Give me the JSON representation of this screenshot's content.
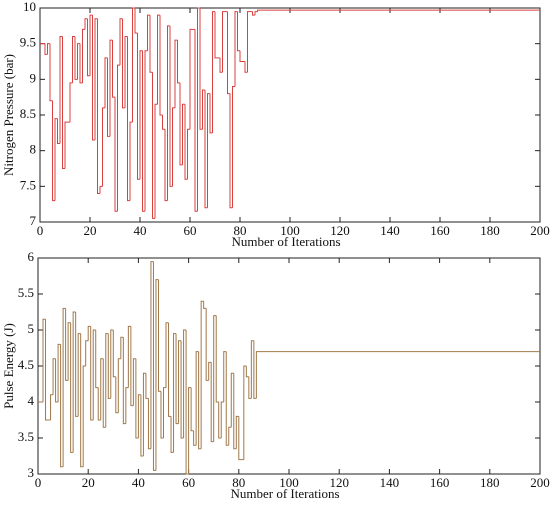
{
  "chart_data": [
    {
      "type": "step",
      "xlabel": "Number of Iterations",
      "ylabel": "Nitrogen Pressure (bar)",
      "x": [
        0,
        1,
        2,
        3,
        4,
        5,
        6,
        7,
        8,
        9,
        10,
        11,
        12,
        13,
        14,
        15,
        16,
        17,
        18,
        19,
        20,
        21,
        22,
        23,
        24,
        25,
        26,
        27,
        28,
        29,
        30,
        31,
        32,
        33,
        34,
        35,
        36,
        37,
        38,
        39,
        40,
        41,
        42,
        43,
        44,
        45,
        46,
        47,
        48,
        49,
        50,
        51,
        52,
        53,
        54,
        55,
        56,
        57,
        58,
        59,
        60,
        61,
        62,
        63,
        64,
        65,
        66,
        67,
        68,
        69,
        70,
        71,
        72,
        73,
        74,
        75,
        76,
        77,
        78,
        79,
        80,
        81,
        82,
        83,
        84,
        85,
        86,
        87,
        88,
        200
      ],
      "series": [
        {
          "color": "#d9413f",
          "values": [
            9.5,
            9.5,
            9.35,
            9.5,
            8.7,
            7.3,
            8.45,
            8.1,
            9.6,
            7.75,
            8.4,
            8.4,
            8.95,
            9.6,
            9.0,
            9.5,
            8.95,
            9.7,
            9.85,
            9.05,
            9.9,
            8.15,
            9.85,
            7.4,
            7.5,
            8.6,
            9.3,
            8.2,
            9.55,
            8.75,
            7.15,
            9.2,
            9.85,
            8.6,
            9.6,
            7.3,
            8.4,
            10.0,
            9.65,
            7.6,
            9.4,
            7.15,
            9.4,
            9.9,
            9.1,
            7.05,
            8.65,
            9.9,
            8.5,
            8.3,
            7.3,
            9.75,
            7.5,
            8.6,
            9.55,
            8.95,
            7.8,
            8.65,
            7.6,
            8.3,
            9.7,
            9.7,
            7.15,
            10.0,
            8.3,
            8.85,
            7.2,
            8.8,
            8.25,
            9.95,
            9.3,
            9.3,
            9.1,
            9.95,
            9.95,
            8.8,
            7.2,
            8.9,
            9.95,
            9.4,
            9.25,
            9.25,
            9.1,
            9.95,
            9.95,
            9.9,
            9.95,
            9.97,
            9.97,
            9.97
          ]
        }
      ],
      "xlim": [
        0,
        200
      ],
      "xticks": [
        0,
        20,
        40,
        60,
        80,
        100,
        120,
        140,
        160,
        180,
        200
      ],
      "ylim": [
        7,
        10
      ],
      "yticks": [
        7,
        7.5,
        8,
        8.5,
        9,
        9.5,
        10
      ]
    },
    {
      "type": "step",
      "xlabel": "Number of Iterations",
      "ylabel": "Pulse Energy (J)",
      "x": [
        0,
        1,
        2,
        3,
        4,
        5,
        6,
        7,
        8,
        9,
        10,
        11,
        12,
        13,
        14,
        15,
        16,
        17,
        18,
        19,
        20,
        21,
        22,
        23,
        24,
        25,
        26,
        27,
        28,
        29,
        30,
        31,
        32,
        33,
        34,
        35,
        36,
        37,
        38,
        39,
        40,
        41,
        42,
        43,
        44,
        45,
        46,
        47,
        48,
        49,
        50,
        51,
        52,
        53,
        54,
        55,
        56,
        57,
        58,
        59,
        60,
        61,
        62,
        63,
        64,
        65,
        66,
        67,
        68,
        69,
        70,
        71,
        72,
        73,
        74,
        75,
        76,
        77,
        78,
        79,
        80,
        81,
        82,
        83,
        84,
        85,
        86,
        87,
        88,
        200
      ],
      "series": [
        {
          "color": "#a0784a",
          "values": [
            4.0,
            4.0,
            5.15,
            3.75,
            3.75,
            4.1,
            4.6,
            4.0,
            4.8,
            3.1,
            5.3,
            4.3,
            5.1,
            3.3,
            5.25,
            3.8,
            4.95,
            3.1,
            4.5,
            4.85,
            5.05,
            3.75,
            5.0,
            4.2,
            3.75,
            4.6,
            3.65,
            4.95,
            4.05,
            5.0,
            4.35,
            3.85,
            4.6,
            4.9,
            3.7,
            4.2,
            5.05,
            3.95,
            4.6,
            3.5,
            4.1,
            3.25,
            4.4,
            4.05,
            3.35,
            5.95,
            3.05,
            5.7,
            4.15,
            3.5,
            4.2,
            5.1,
            3.8,
            3.3,
            4.95,
            3.7,
            4.85,
            3.5,
            5.0,
            3.0,
            4.2,
            3.6,
            3.4,
            4.7,
            3.35,
            5.4,
            5.3,
            4.3,
            4.55,
            3.45,
            5.2,
            4.0,
            3.5,
            4.0,
            4.7,
            3.4,
            3.65,
            4.4,
            3.35,
            3.8,
            3.2,
            3.2,
            4.5,
            4.35,
            4.05,
            4.85,
            4.05,
            4.7,
            4.7,
            4.7
          ]
        }
      ],
      "xlim": [
        0,
        200
      ],
      "xticks": [
        0,
        20,
        40,
        60,
        80,
        100,
        120,
        140,
        160,
        180,
        200
      ],
      "ylim": [
        3,
        6
      ],
      "yticks": [
        3,
        3.5,
        4,
        4.5,
        5,
        5.5,
        6
      ]
    }
  ]
}
